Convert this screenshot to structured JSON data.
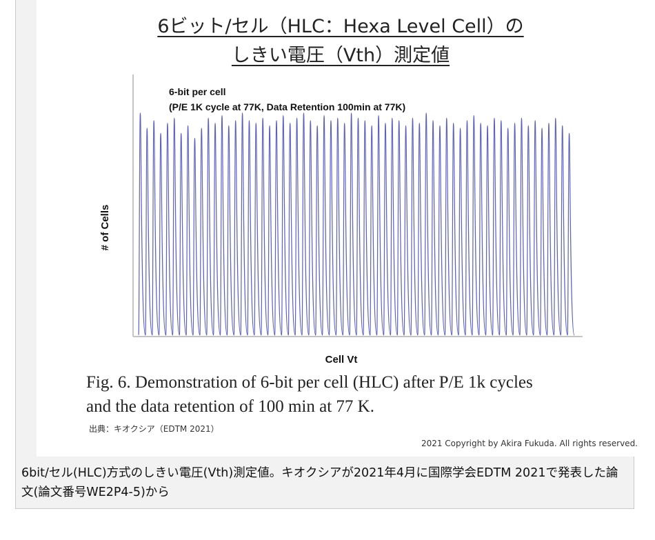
{
  "figure": {
    "title_line1": "6ビット/セル（HLC：Hexa Level Cell）の",
    "title_line2": "しきい電圧（Vth）測定値",
    "caption_line1": "Fig. 6. Demonstration of 6-bit per cell (HLC) after P/E 1k cycles",
    "caption_line2": "and the data retention of 100 min at 77 K.",
    "source": "出典：キオクシア（EDTM 2021）",
    "copyright": "2021 Copyright by Akira Fukuda. All rights reserved."
  },
  "bottom_caption": "6bit/セル(HLC)方式のしきい電圧(Vth)測定値。キオクシアが2021年4月に国際学会EDTM 2021で発表した論文(論文番号WE2P4-5)から",
  "colors": {
    "series": "#5a5fc0",
    "axis": "#b0b0b0"
  },
  "chart_data": {
    "type": "line",
    "title": "6-bit per cell",
    "subtitle": "(P/E 1K cycle at 77K, Data Retention 100min at 77K)",
    "xlabel": "Cell Vt",
    "ylabel": "# of Cells",
    "x_ticks_visible": false,
    "y_ticks_visible": false,
    "series": [
      {
        "levels": 64,
        "relative_peak_heights": [
          0.88,
          0.82,
          0.85,
          0.8,
          0.84,
          0.86,
          0.8,
          0.83,
          0.78,
          0.82,
          0.86,
          0.84,
          0.87,
          0.83,
          0.85,
          0.88,
          0.85,
          0.84,
          0.86,
          0.83,
          0.85,
          0.87,
          0.84,
          0.86,
          0.88,
          0.85,
          0.83,
          0.87,
          0.85,
          0.86,
          0.84,
          0.88,
          0.86,
          0.85,
          0.83,
          0.87,
          0.84,
          0.86,
          0.85,
          0.83,
          0.86,
          0.84,
          0.88,
          0.85,
          0.83,
          0.86,
          0.84,
          0.82,
          0.85,
          0.87,
          0.84,
          0.83,
          0.86,
          0.85,
          0.82,
          0.84,
          0.86,
          0.83,
          0.85,
          0.82,
          0.84,
          0.86,
          0.83,
          0.8
        ]
      }
    ]
  }
}
